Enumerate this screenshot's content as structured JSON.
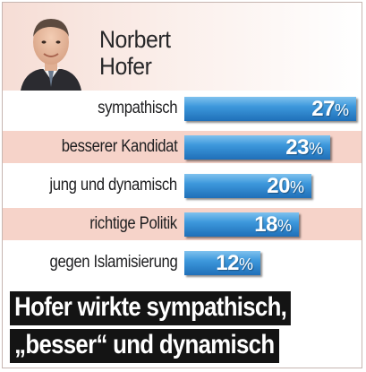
{
  "person": {
    "first_name": "Norbert",
    "last_name": "Hofer"
  },
  "chart_data": {
    "type": "bar",
    "orientation": "horizontal",
    "categories": [
      "sympathisch",
      "besserer Kandidat",
      "jung und dynamisch",
      "richtige Politik",
      "gegen Islamisierung"
    ],
    "values": [
      27,
      23,
      20,
      18,
      12
    ],
    "value_suffix": "%",
    "bar_color": "#2f86cf",
    "row_shading_color": "#f6d3c9"
  },
  "headline": {
    "line1": "Hofer wirkte sympathisch,",
    "line2": "„besser“ und dynamisch"
  }
}
